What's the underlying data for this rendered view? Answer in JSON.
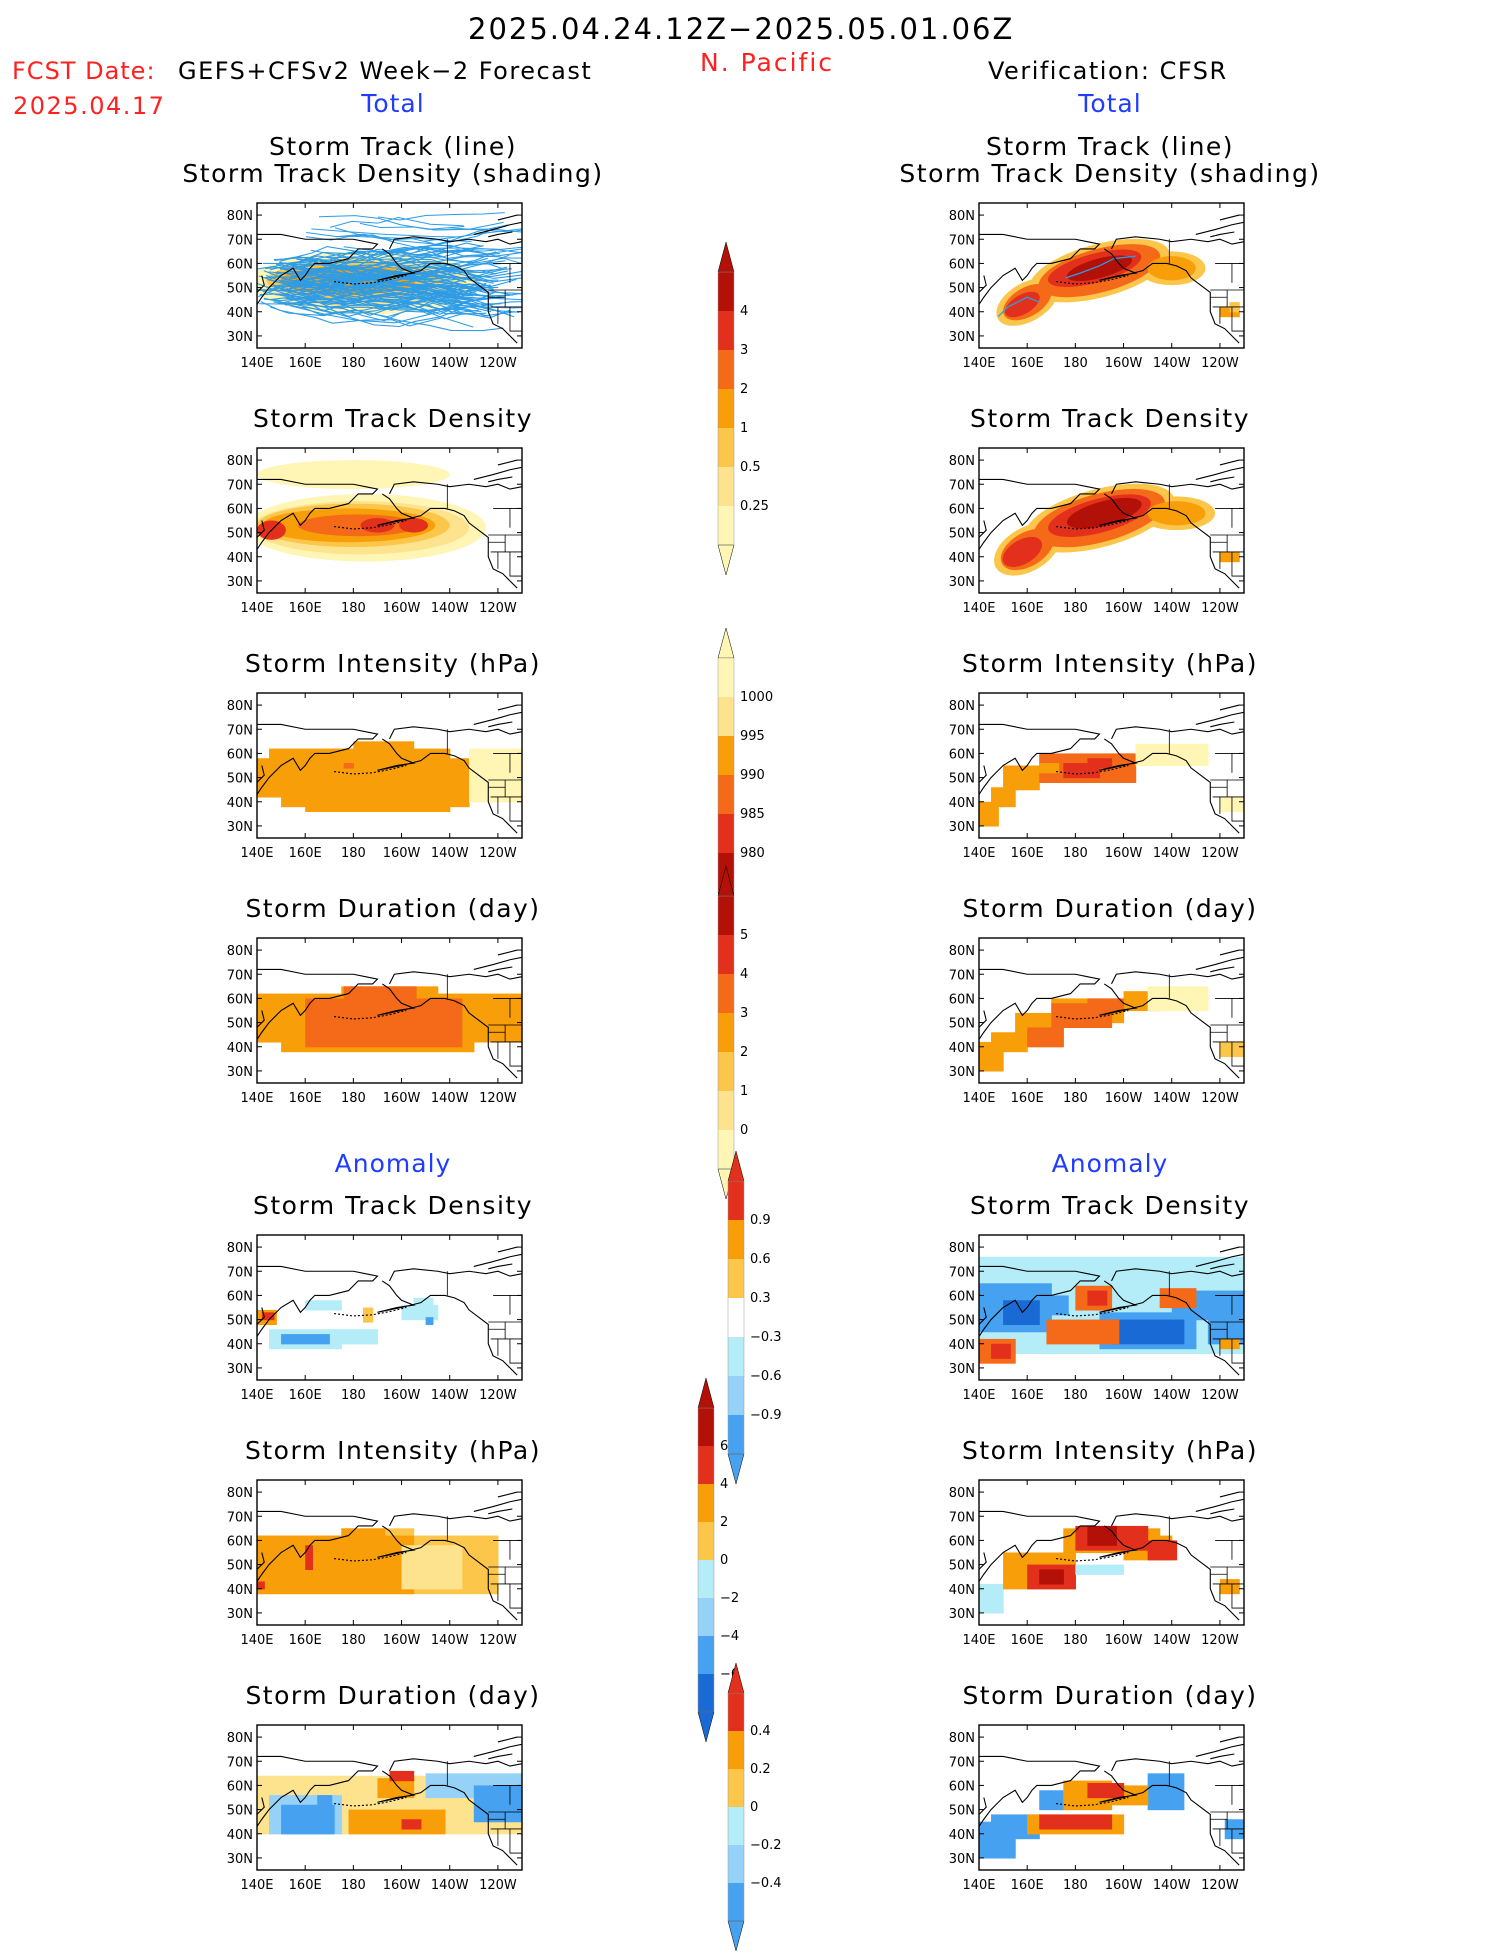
{
  "header": {
    "date_range": "2025.04.24.12Z−2025.05.01.06Z",
    "region": "N. Pacific",
    "fcst_label": "FCST Date:",
    "fcst_product": "GEFS+CFSv2 Week−2 Forecast",
    "fcst_date": "2025.04.17",
    "verification": "Verification: CFSR"
  },
  "columns": {
    "left_total": "Total",
    "right_total": "Total",
    "left_anomaly": "Anomaly",
    "right_anomaly": "Anomaly"
  },
  "titles": {
    "track_line": "Storm Track (line)",
    "track_shading": "Storm Track Density (shading)",
    "density": "Storm Track Density",
    "intensity": "Storm Intensity (hPa)",
    "duration": "Storm Duration (day)"
  },
  "axes": {
    "x_ticks": [
      "140E",
      "160E",
      "180",
      "160W",
      "140W",
      "120W"
    ],
    "y_ticks": [
      "80N",
      "70N",
      "60N",
      "50N",
      "40N",
      "30N"
    ]
  },
  "colors": {
    "c1": "#fff5b4",
    "c2": "#fee38f",
    "c3": "#fcc64a",
    "c4": "#f89e08",
    "c5": "#f56a18",
    "c6": "#e3301c",
    "c7": "#b31008",
    "b1": "#b4ecf8",
    "b2": "#96d2f8",
    "b3": "#46a2f0",
    "b4": "#1a6ad6",
    "track_line": "#2e9ce6"
  },
  "chart_data": [
    {
      "type": "heatmap",
      "panel": "forecast_total_track",
      "title": "Storm Track (line) / Storm Track Density (shading)",
      "xlim": [
        "140E",
        "110W"
      ],
      "ylim": [
        "25N",
        "85N"
      ]
    },
    {
      "type": "heatmap",
      "panel": "verification_total_track",
      "title": "Storm Track (line) / Storm Track Density (shading)",
      "xlim": [
        "140E",
        "110W"
      ],
      "ylim": [
        "25N",
        "85N"
      ]
    },
    {
      "type": "heatmap",
      "panel": "forecast_total_density",
      "title": "Storm Track Density"
    },
    {
      "type": "heatmap",
      "panel": "verification_total_density",
      "title": "Storm Track Density"
    },
    {
      "type": "heatmap",
      "panel": "forecast_total_intensity",
      "title": "Storm Intensity (hPa)"
    },
    {
      "type": "heatmap",
      "panel": "verification_total_intensity",
      "title": "Storm Intensity (hPa)"
    },
    {
      "type": "heatmap",
      "panel": "forecast_total_duration",
      "title": "Storm Duration (day)"
    },
    {
      "type": "heatmap",
      "panel": "verification_total_duration",
      "title": "Storm Duration (day)"
    },
    {
      "type": "heatmap",
      "panel": "forecast_anomaly_density",
      "title": "Storm Track Density"
    },
    {
      "type": "heatmap",
      "panel": "verification_anomaly_density",
      "title": "Storm Track Density"
    },
    {
      "type": "heatmap",
      "panel": "forecast_anomaly_intensity",
      "title": "Storm Intensity (hPa)"
    },
    {
      "type": "heatmap",
      "panel": "verification_anomaly_intensity",
      "title": "Storm Intensity (hPa)"
    },
    {
      "type": "heatmap",
      "panel": "forecast_anomaly_duration",
      "title": "Storm Duration (day)"
    },
    {
      "type": "heatmap",
      "panel": "verification_anomaly_duration",
      "title": "Storm Duration (day)"
    }
  ],
  "colorbars": {
    "density_total": [
      "4",
      "3",
      "2",
      "1",
      "0.5",
      "0.25"
    ],
    "intensity_total": [
      "1000",
      "995",
      "990",
      "985",
      "980"
    ],
    "duration_total": [
      "5",
      "4",
      "3",
      "2",
      "1",
      "0"
    ],
    "density_anomaly": [
      "0.9",
      "0.6",
      "0.3",
      "−0.3",
      "−0.6",
      "−0.9"
    ],
    "intensity_anomaly": [
      "6",
      "4",
      "2",
      "0",
      "−2",
      "−4",
      "−6"
    ],
    "duration_anomaly": [
      "0.4",
      "0.2",
      "0",
      "−0.2",
      "−0.4"
    ]
  }
}
